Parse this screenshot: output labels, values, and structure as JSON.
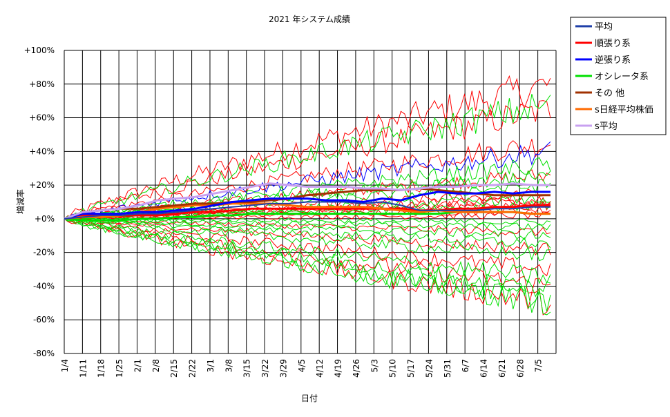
{
  "chart_data": {
    "type": "line",
    "title": "2021 年システム成績",
    "xlabel": "日付",
    "ylabel": "増減率",
    "ylim": [
      -80,
      100
    ],
    "y_ticks": [
      {
        "value": 100,
        "label": "+100%"
      },
      {
        "value": 80,
        "label": "+80%"
      },
      {
        "value": 60,
        "label": "+60%"
      },
      {
        "value": 40,
        "label": "+40%"
      },
      {
        "value": 20,
        "label": "+20%"
      },
      {
        "value": 0,
        "label": "+0%"
      },
      {
        "value": -20,
        "label": "-20%"
      },
      {
        "value": -40,
        "label": "-40%"
      },
      {
        "value": -60,
        "label": "-60%"
      },
      {
        "value": -80,
        "label": "-80%"
      }
    ],
    "categories": [
      "1/4",
      "1/11",
      "1/18",
      "1/25",
      "2/1",
      "2/8",
      "2/15",
      "2/22",
      "3/1",
      "3/8",
      "3/15",
      "3/22",
      "3/29",
      "4/5",
      "4/12",
      "4/19",
      "4/26",
      "5/3",
      "5/10",
      "5/17",
      "5/24",
      "5/31",
      "6/7",
      "6/14",
      "6/21",
      "6/28",
      "7/5"
    ],
    "grid": true,
    "legend_position": "right",
    "series": [
      {
        "name": "平均",
        "color": "#1f3fa8",
        "values": [
          0,
          1,
          2,
          2,
          3,
          3,
          4,
          5,
          6,
          7,
          8,
          9,
          9,
          10,
          10,
          10,
          9,
          10,
          8,
          5,
          5,
          5,
          5,
          6,
          6,
          7,
          7
        ]
      },
      {
        "name": "順張り系",
        "color": "#ff0000",
        "values": [
          0,
          2,
          2,
          2,
          2,
          2,
          3,
          4,
          4,
          5,
          6,
          6,
          6,
          6,
          6,
          6,
          6,
          6,
          6,
          5,
          5,
          6,
          6,
          7,
          7,
          8,
          8
        ]
      },
      {
        "name": "逆張り系",
        "color": "#0000ff",
        "values": [
          0,
          3,
          3,
          3,
          4,
          4,
          5,
          6,
          8,
          10,
          11,
          12,
          12,
          12,
          11,
          11,
          10,
          12,
          11,
          14,
          16,
          15,
          15,
          16,
          15,
          16,
          16
        ]
      },
      {
        "name": "オシレータ系",
        "color": "#00e000",
        "values": [
          0,
          -1,
          -1,
          -1,
          0,
          0,
          1,
          1,
          2,
          2,
          3,
          3,
          3,
          3,
          3,
          3,
          3,
          3,
          3,
          3,
          3,
          4,
          4,
          4,
          4,
          3,
          3
        ]
      },
      {
        "name": "その 他",
        "color": "#a03000",
        "values": [
          0,
          4,
          5,
          6,
          6,
          7,
          8,
          9,
          9,
          10,
          10,
          11,
          12,
          14,
          15,
          16,
          17,
          17,
          17,
          18,
          17,
          16,
          15,
          14,
          14,
          14,
          14
        ]
      },
      {
        "name": "s日経平均株価",
        "color": "#ff6a00",
        "values": [
          0,
          1,
          1,
          2,
          4,
          6,
          7,
          8,
          8,
          9,
          9,
          9,
          8,
          7,
          7,
          7,
          7,
          6,
          5,
          4,
          5,
          4,
          4,
          4,
          4,
          3,
          3
        ]
      },
      {
        "name": "s平均",
        "color": "#c8a0f0",
        "values": [
          0,
          4,
          5,
          6,
          8,
          11,
          12,
          13,
          15,
          17,
          19,
          21,
          20,
          19,
          19,
          19,
          18,
          18,
          17,
          18,
          19,
          19,
          20,
          20,
          21,
          20,
          20
        ]
      }
    ],
    "background_lines": {
      "trend_system": {
        "color": "#ff0000",
        "finals": [
          80,
          65,
          45,
          26,
          15,
          12,
          10,
          8,
          5,
          2,
          -8,
          -18,
          -30,
          -40,
          -50
        ]
      },
      "counter_system": {
        "color": "#0000ff",
        "finals": [
          40
        ]
      },
      "oscillator_system": {
        "color": "#00e000",
        "finals": [
          68,
          32,
          25,
          20,
          12,
          8,
          -2,
          -5,
          -10,
          -15,
          -22,
          -35,
          -42,
          -50,
          -48
        ]
      }
    }
  }
}
